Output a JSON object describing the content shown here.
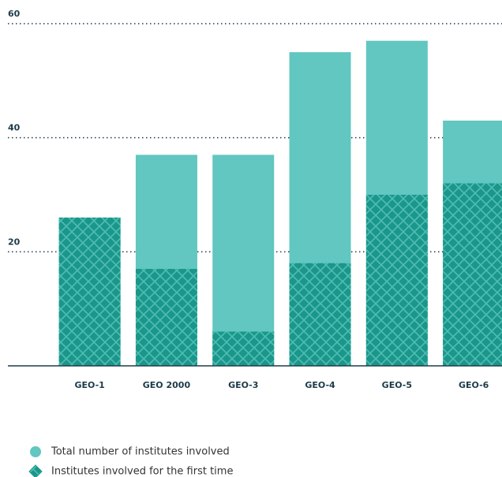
{
  "chart_data": {
    "type": "bar",
    "categories": [
      "GEO-1",
      "GEO 2000",
      "GEO-3",
      "GEO-4",
      "GEO-5",
      "GEO-6"
    ],
    "series": [
      {
        "name": "Total number of institutes involved",
        "color": "#62c6c1",
        "values": [
          26,
          37,
          37,
          55,
          57,
          43
        ]
      },
      {
        "name": "Institutes involved for the first time",
        "color": "#1a978a",
        "values": [
          26,
          17,
          6,
          18,
          30,
          32
        ]
      }
    ],
    "ylim": [
      0,
      60
    ],
    "yticks": [
      20,
      40,
      60
    ],
    "grid": true
  }
}
